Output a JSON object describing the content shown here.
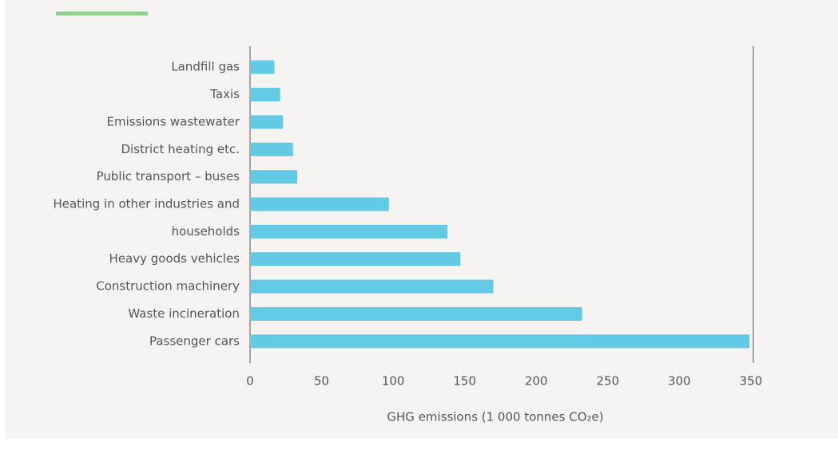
{
  "chart_data": {
    "type": "bar",
    "orientation": "horizontal",
    "xlabel": "GHG emissions (1 000 tonnes CO₂e)",
    "categories": [
      "Landfill gas",
      "Taxis",
      "Emissions wastewater",
      "District heating etc.",
      "Public transport – buses",
      "Heating in other industries and",
      "households",
      "Heavy goods vehicles",
      "Construction machinery",
      "Waste incineration",
      "Passenger cars"
    ],
    "values": [
      17,
      21,
      23,
      30,
      33,
      97,
      138,
      147,
      170,
      232,
      349
    ],
    "color": "#62cae5",
    "xlim": [
      0,
      350
    ],
    "xticks": [
      0,
      50,
      100,
      150,
      200,
      250,
      300,
      350
    ],
    "grid": false
  }
}
